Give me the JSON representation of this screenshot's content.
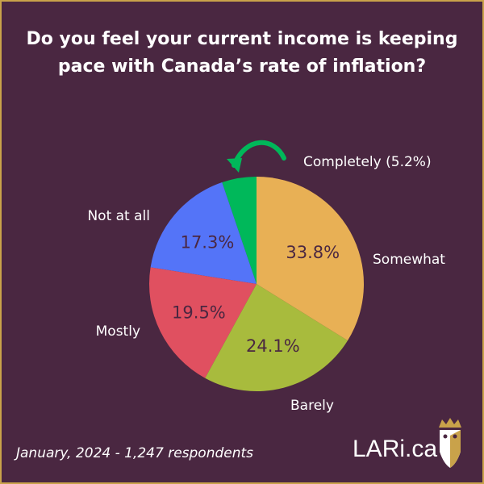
{
  "chart_data": {
    "type": "pie",
    "title": "Do you feel your current income is keeping pace with Canada’s rate of inflation?",
    "slices": [
      {
        "label": "Somewhat",
        "value": 33.8,
        "value_label": "33.8%",
        "color": "#e8b055"
      },
      {
        "label": "Barely",
        "value": 24.1,
        "value_label": "24.1%",
        "color": "#a8bb3d"
      },
      {
        "label": "Mostly",
        "value": 19.5,
        "value_label": "19.5%",
        "color": "#e05060"
      },
      {
        "label": "Not at all",
        "value": 17.3,
        "value_label": "17.3%",
        "color": "#5474f8"
      },
      {
        "label": "Completely (5.2%)",
        "value": 5.2,
        "value_label": "",
        "color": "#00b85a"
      }
    ],
    "start": "top",
    "direction": "clockwise"
  },
  "footer": "January, 2024 - 1,247 respondents",
  "brand": "LARi.ca",
  "colors": {
    "background": "#4a2741",
    "border": "#c9a24a",
    "arrow": "#00b85a"
  }
}
